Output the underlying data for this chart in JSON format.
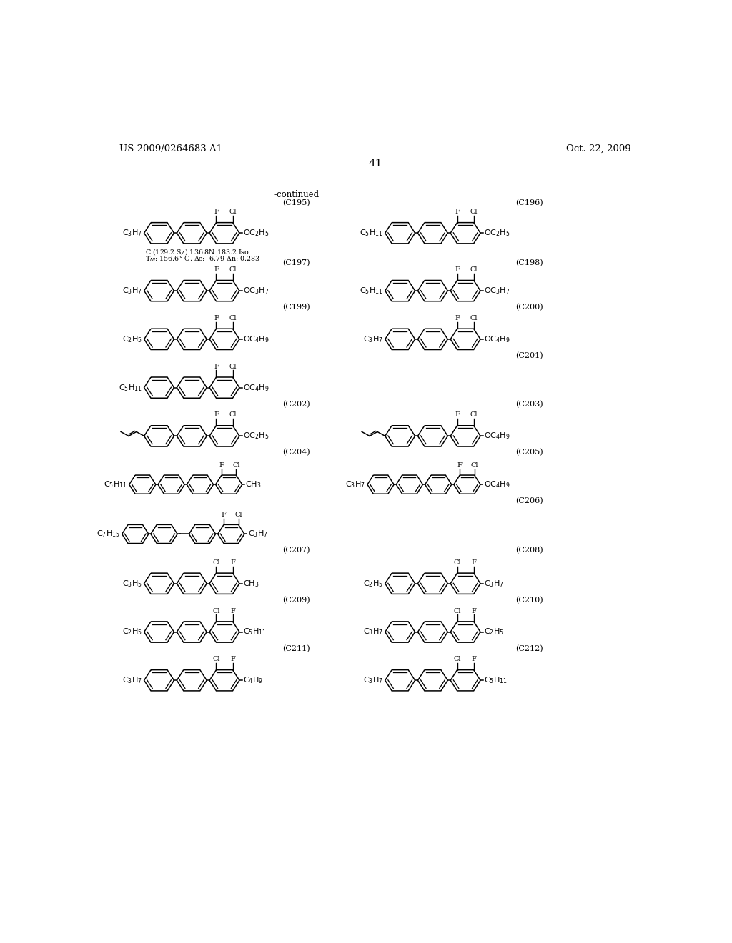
{
  "page_number": "41",
  "patent_number": "US 2009/0264683 A1",
  "patent_date": "Oct. 22, 2009",
  "continued_label": "-continued",
  "background_color": "#ffffff",
  "text_color": "#000000"
}
